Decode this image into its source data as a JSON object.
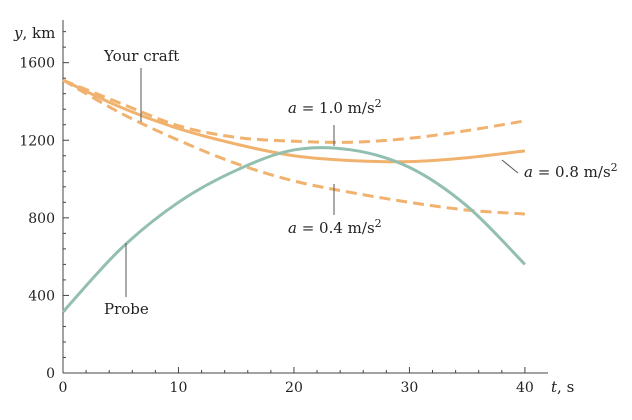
{
  "chart_data": {
    "type": "line",
    "xlabel": {
      "var": "t",
      "unit": ", s"
    },
    "ylabel": {
      "var": "y",
      "unit": ", km"
    },
    "xlim": [
      0,
      42
    ],
    "ylim": [
      0,
      1820
    ],
    "x_ticks": [
      0,
      10,
      20,
      30,
      40
    ],
    "y_ticks": [
      0,
      400,
      800,
      1200,
      1600
    ],
    "grid": false,
    "series": [
      {
        "name": "Your craft",
        "role": "label",
        "style": "solid",
        "color": "#F0B26E",
        "x": [
          0,
          5,
          10,
          15,
          20,
          25,
          30,
          35,
          40
        ],
        "y": [
          1510,
          1370,
          1260,
          1180,
          1120,
          1095,
          1090,
          1110,
          1145
        ]
      },
      {
        "name": "a = 1.0 m/s²",
        "label": {
          "pre": "a",
          "mid": " = 1.0 m/s",
          "sup": "2"
        },
        "style": "dashed",
        "color": "#F0B26E",
        "x": [
          0,
          5,
          10,
          15,
          20,
          25,
          30,
          35,
          40
        ],
        "y": [
          1510,
          1390,
          1275,
          1215,
          1195,
          1190,
          1210,
          1250,
          1300
        ]
      },
      {
        "name": "a = 0.4 m/s²",
        "label": {
          "pre": "a",
          "mid": " = 0.4 m/s",
          "sup": "2"
        },
        "style": "dashed",
        "color": "#F0B26E",
        "x": [
          0,
          5,
          10,
          15,
          20,
          25,
          30,
          35,
          40
        ],
        "y": [
          1510,
          1340,
          1200,
          1080,
          990,
          930,
          880,
          840,
          820
        ]
      },
      {
        "name": "a = 0.8 m/s²",
        "label": {
          "pre": "a",
          "mid": " = 0.8 m/s",
          "sup": "2"
        },
        "style": "solid",
        "color": "#F0B26E",
        "x": [
          0,
          5,
          10,
          15,
          20,
          25,
          30,
          35,
          40
        ],
        "y": [
          1510,
          1370,
          1260,
          1180,
          1120,
          1095,
          1090,
          1110,
          1145
        ]
      },
      {
        "name": "Probe",
        "style": "solid",
        "color": "#93BFB1",
        "x": [
          0,
          5,
          10,
          15,
          20,
          25,
          30,
          35,
          40
        ],
        "y": [
          315,
          640,
          880,
          1045,
          1150,
          1150,
          1060,
          860,
          560
        ]
      }
    ],
    "annotations": {
      "your_craft": "Your craft",
      "probe": "Probe"
    }
  }
}
